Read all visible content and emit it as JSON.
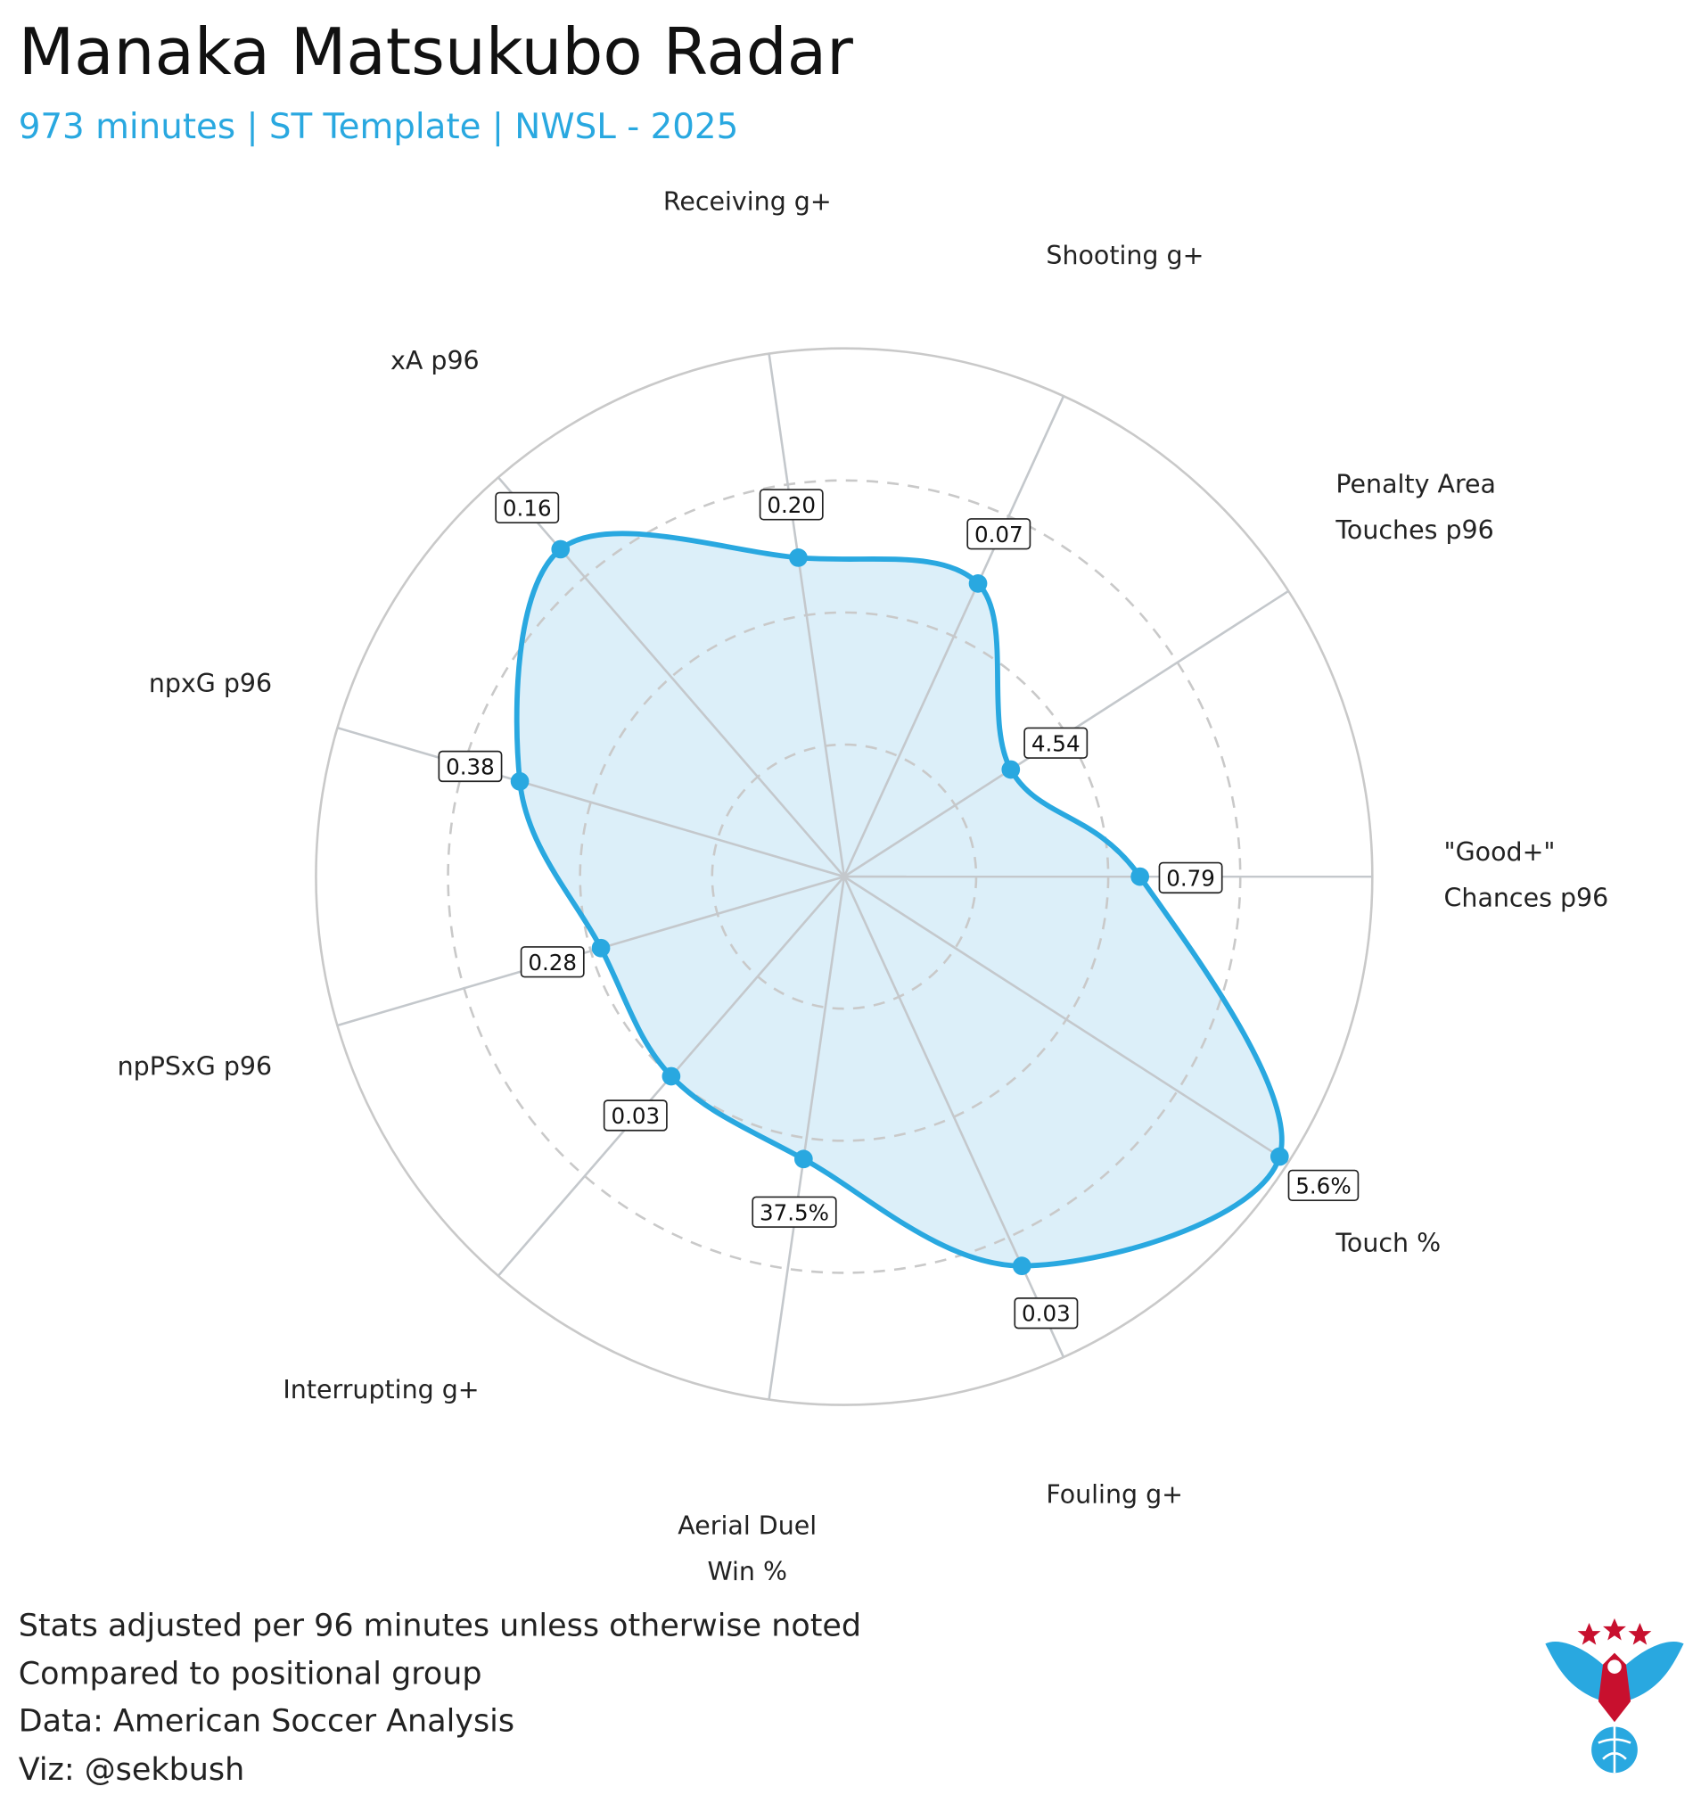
{
  "chart_data": {
    "type": "radar",
    "title": "Manaka Matsukubo Radar",
    "subtitle": "973 minutes | ST Template | NWSL - 2025",
    "categories": [
      "Receiving g+",
      "Shooting g+",
      "Penalty Area\nTouches p96",
      "\"Good+\"\nChances p96",
      "Touch %",
      "Fouling g+",
      "Aerial Duel\nWin %",
      "Interrupting g+",
      "npPSxG p96",
      "npxG p96",
      "xA p96"
    ],
    "values": [
      61,
      61,
      37.5,
      56,
      98,
      81,
      54,
      50,
      48,
      64,
      82
    ],
    "value_labels": [
      "0.20",
      "0.07",
      "4.54",
      "0.79",
      "5.6%",
      "0.03",
      "37.5%",
      "0.03",
      "0.28",
      "0.38",
      "0.16"
    ],
    "color": "#29a8e0",
    "fill_color": "#dceff9",
    "ylim": [
      0,
      100
    ],
    "yticks": [
      25,
      50,
      75,
      100
    ],
    "notes": [
      "Stats adjusted per 96 minutes unless otherwise noted",
      "Compared to positional group",
      "Data: American Soccer Analysis",
      "Viz: @sekbush"
    ]
  }
}
